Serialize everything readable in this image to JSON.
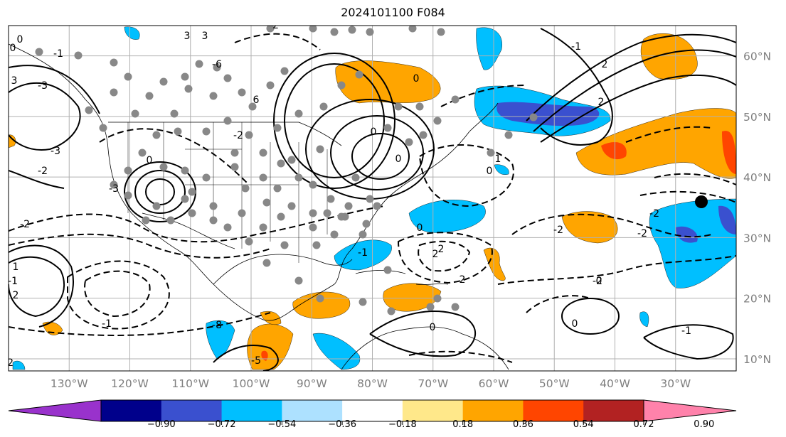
{
  "title": "2024101100 F084",
  "chart_data": {
    "type": "contour-map",
    "title": "2024101100 F084",
    "lon_range": [
      -140,
      -20
    ],
    "lat_range": [
      8,
      65
    ],
    "lon_ticks": [
      "130°W",
      "120°W",
      "110°W",
      "100°W",
      "90°W",
      "80°W",
      "70°W",
      "60°W",
      "50°W",
      "40°W",
      "30°W"
    ],
    "lat_ticks": [
      "60°N",
      "50°N",
      "40°N",
      "30°N",
      "20°N",
      "10°N"
    ],
    "grid": true,
    "colorbar": {
      "levels": [
        "−0.90",
        "−0.72",
        "−0.54",
        "−0.36",
        "−0.18",
        "0.18",
        "0.36",
        "0.54",
        "0.72",
        "0.90"
      ],
      "colors": [
        "#9932CC",
        "#00008B",
        "#3A50CF",
        "#00BFFF",
        "#ADE1FF",
        "#FFFFFF",
        "#FFE88A",
        "#FFA500",
        "#FF4500",
        "#B22222",
        "#FF82AB"
      ],
      "extend": "both"
    },
    "contour_labels": [
      "0",
      "3",
      "-6",
      "-3",
      "0",
      "-3",
      "3",
      "-3",
      "0",
      "-1",
      "3",
      "6",
      "-2",
      "-2",
      "-2",
      "0",
      "0",
      "2",
      "2",
      "-2",
      "-2",
      "-2",
      "0",
      "0",
      "0",
      "-1",
      "0",
      "-1",
      "-1",
      "-2",
      "2",
      "0",
      "-2",
      "2",
      "0",
      "-8",
      "-5",
      "-1",
      "1",
      "-2",
      "1",
      "-1",
      "2",
      "2"
    ],
    "markers": {
      "black_dot": {
        "lon": -24.5,
        "lat": 35.5
      }
    }
  }
}
